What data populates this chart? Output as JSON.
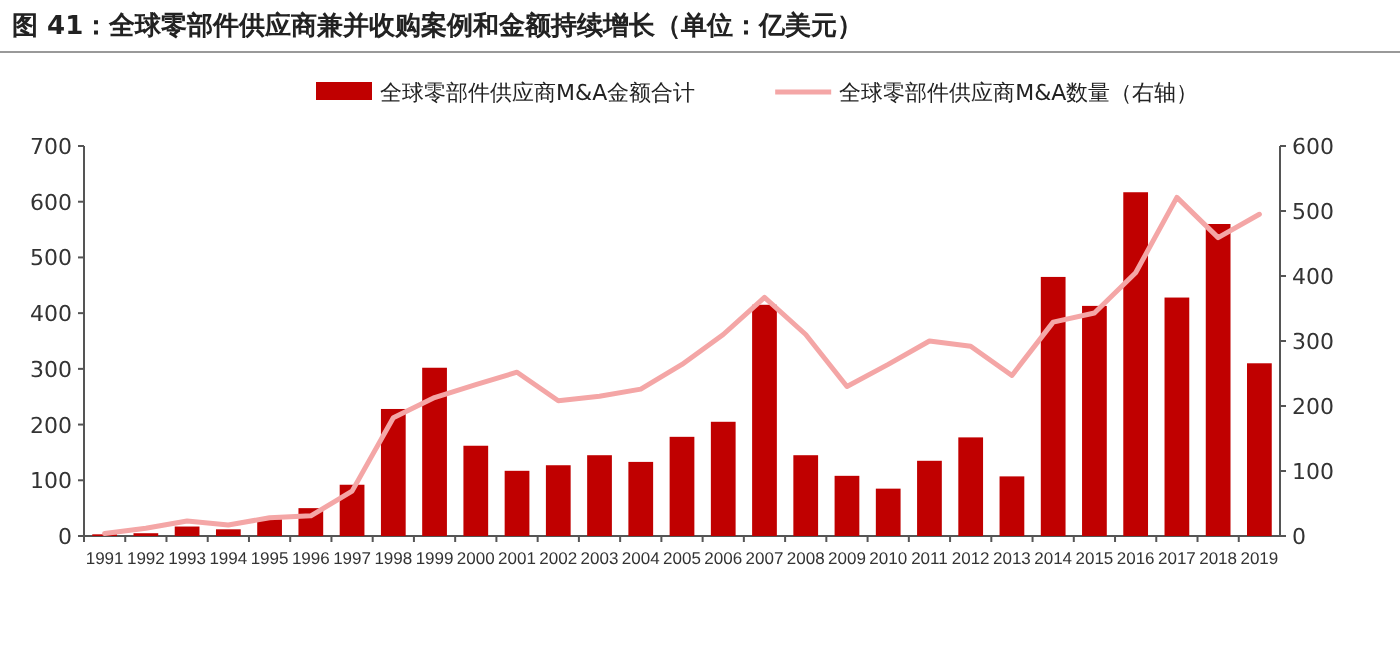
{
  "chart_data": {
    "type": "bar",
    "title": "图 41：全球零部件供应商兼并收购案例和金额持续增长（单位：亿美元）",
    "categories": [
      "1991",
      "1992",
      "1993",
      "1994",
      "1995",
      "1996",
      "1997",
      "1998",
      "1999",
      "2000",
      "2001",
      "2002",
      "2003",
      "2004",
      "2005",
      "2006",
      "2007",
      "2008",
      "2009",
      "2010",
      "2011",
      "2012",
      "2013",
      "2014",
      "2015",
      "2016",
      "2017",
      "2018",
      "2019"
    ],
    "series": [
      {
        "name": "全球零部件供应商M&A金额合计",
        "color": "#c00000",
        "values": [
          3,
          5,
          17,
          12,
          30,
          50,
          92,
          228,
          302,
          162,
          117,
          127,
          145,
          133,
          178,
          205,
          415,
          145,
          108,
          85,
          135,
          177,
          107,
          465,
          413,
          617,
          428,
          560,
          310
        ]
      },
      {
        "name": "全球零部件供应商M&A数量（右轴）",
        "type": "line",
        "axis": "y2",
        "color": "#f4a6a6",
        "values": [
          4,
          12,
          23,
          17,
          28,
          31,
          69,
          182,
          213,
          233,
          252,
          208,
          215,
          226,
          264,
          310,
          367,
          310,
          230,
          264,
          300,
          292,
          247,
          329,
          343,
          405,
          521,
          459,
          495
        ]
      }
    ],
    "ylim": [
      0,
      700
    ],
    "yticks": [
      0,
      100,
      200,
      300,
      400,
      500,
      600,
      700
    ],
    "y2lim": [
      0,
      600
    ],
    "y2ticks": [
      0,
      100,
      200,
      300,
      400,
      500,
      600
    ],
    "legend": "top",
    "grid": false
  }
}
